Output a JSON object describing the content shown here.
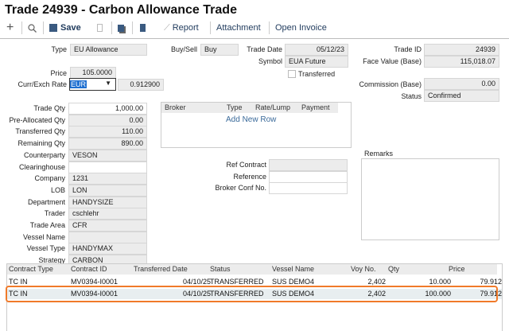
{
  "title": "Trade 24939 - Carbon Allowance Trade",
  "toolbar": {
    "save": "Save",
    "report": "Report",
    "attachment": "Attachment",
    "open_invoice": "Open Invoice"
  },
  "header": {
    "type_label": "Type",
    "type": "EU Allowance",
    "buysell_label": "Buy/Sell",
    "buysell": "Buy",
    "trade_date_label": "Trade Date",
    "trade_date": "05/12/23",
    "symbol_label": "Symbol",
    "symbol": "EUA Future",
    "transferred_label": "Transferred",
    "transferred": false,
    "trade_id_label": "Trade ID",
    "trade_id": "24939",
    "face_value_label": "Face Value (Base)",
    "face_value": "115,018.07",
    "price_label": "Price",
    "price": "105.0000",
    "curr_label": "Curr/Exch Rate",
    "currency": "EUR",
    "exch_rate": "0.912900",
    "commission_label": "Commission (Base)",
    "commission": "0.00",
    "status_label": "Status",
    "status": "Confirmed"
  },
  "details": [
    {
      "label": "Trade Qty",
      "value": "1,000.00",
      "align": "r",
      "white": true
    },
    {
      "label": "Pre-Allocated Qty",
      "value": "0.00",
      "align": "r"
    },
    {
      "label": "Transferred Qty",
      "value": "110.00",
      "align": "r"
    },
    {
      "label": "Remaining Qty",
      "value": "890.00",
      "align": "r"
    },
    {
      "label": "Counterparty",
      "value": "VESON"
    },
    {
      "label": "Clearinghouse",
      "value": "",
      "white": true
    },
    {
      "label": "Company",
      "value": "1231"
    },
    {
      "label": "LOB",
      "value": "LON"
    },
    {
      "label": "Department",
      "value": "HANDYSIZE"
    },
    {
      "label": "Trader",
      "value": "cschlehr"
    },
    {
      "label": "Trade Area",
      "value": "CFR"
    },
    {
      "label": "Vessel Name",
      "value": ""
    },
    {
      "label": "Vessel Type",
      "value": "HANDYMAX"
    },
    {
      "label": "Strategy",
      "value": "CARBON"
    }
  ],
  "broker": {
    "columns": [
      "Broker",
      "Type",
      "Rate/Lump",
      "Payment"
    ],
    "add_row": "Add New Row"
  },
  "refs": [
    {
      "label": "Ref Contract",
      "value": ""
    },
    {
      "label": "Reference",
      "value": ""
    },
    {
      "label": "Broker Conf No.",
      "value": ""
    }
  ],
  "remarks_label": "Remarks",
  "transfers": {
    "columns": [
      "Contract Type",
      "Contract ID",
      "Transferred Date",
      "Status",
      "Vessel Name",
      "Voy No.",
      "Qty",
      "Price"
    ],
    "rows": [
      [
        "TC IN",
        "MV0394-I0001",
        "04/10/25",
        "TRANSFERRED",
        "SUS DEMO4",
        "2,402",
        "10.000",
        "79.912"
      ],
      [
        "TC IN",
        "MV0394-I0001",
        "04/10/25",
        "TRANSFERRED",
        "SUS DEMO4",
        "2,402",
        "100.000",
        "79.912"
      ]
    ],
    "highlighted_row": 1
  },
  "colors": {
    "highlight": "#f07a2a",
    "accent": "#1f3a5c",
    "select": "#1e6fd0"
  }
}
